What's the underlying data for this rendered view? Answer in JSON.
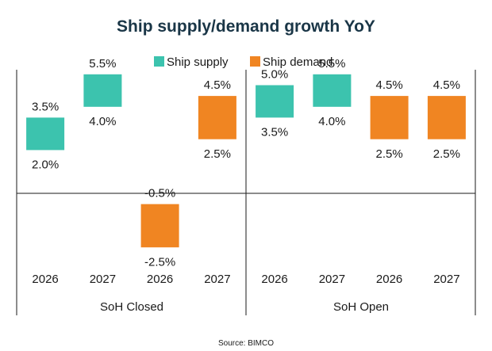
{
  "chart_data": {
    "type": "bar",
    "subtype": "floating-range",
    "title": "Ship supply/demand  growth YoY",
    "source": "Source: BIMCO",
    "legend": [
      {
        "name": "Ship supply",
        "color": "#3cc3ae"
      },
      {
        "name": "Ship demand",
        "color": "#f08522"
      }
    ],
    "ylim": [
      -3.5,
      7.5
    ],
    "groups": [
      {
        "label": "SoH Closed",
        "bars": [
          {
            "category": "2026",
            "series": "Ship supply",
            "low": 2.0,
            "high": 3.5,
            "low_label": "2.0%",
            "high_label": "3.5%"
          },
          {
            "category": "2027",
            "series": "Ship supply",
            "low": 4.0,
            "high": 5.5,
            "low_label": "4.0%",
            "high_label": "5.5%"
          },
          {
            "category": "2026",
            "series": "Ship demand",
            "low": -2.5,
            "high": -0.5,
            "low_label": "-2.5%",
            "high_label": "-0.5%"
          },
          {
            "category": "2027",
            "series": "Ship demand",
            "low": 2.5,
            "high": 4.5,
            "low_label": "2.5%",
            "high_label": "4.5%"
          }
        ]
      },
      {
        "label": "SoH Open",
        "bars": [
          {
            "category": "2026",
            "series": "Ship supply",
            "low": 3.5,
            "high": 5.0,
            "low_label": "3.5%",
            "high_label": "5.0%"
          },
          {
            "category": "2027",
            "series": "Ship supply",
            "low": 4.0,
            "high": 5.5,
            "low_label": "4.0%",
            "high_label": "5.5%"
          },
          {
            "category": "2026",
            "series": "Ship demand",
            "low": 2.5,
            "high": 4.5,
            "low_label": "2.5%",
            "high_label": "4.5%"
          },
          {
            "category": "2027",
            "series": "Ship demand",
            "low": 2.5,
            "high": 4.5,
            "low_label": "2.5%",
            "high_label": "4.5%"
          }
        ]
      }
    ]
  }
}
